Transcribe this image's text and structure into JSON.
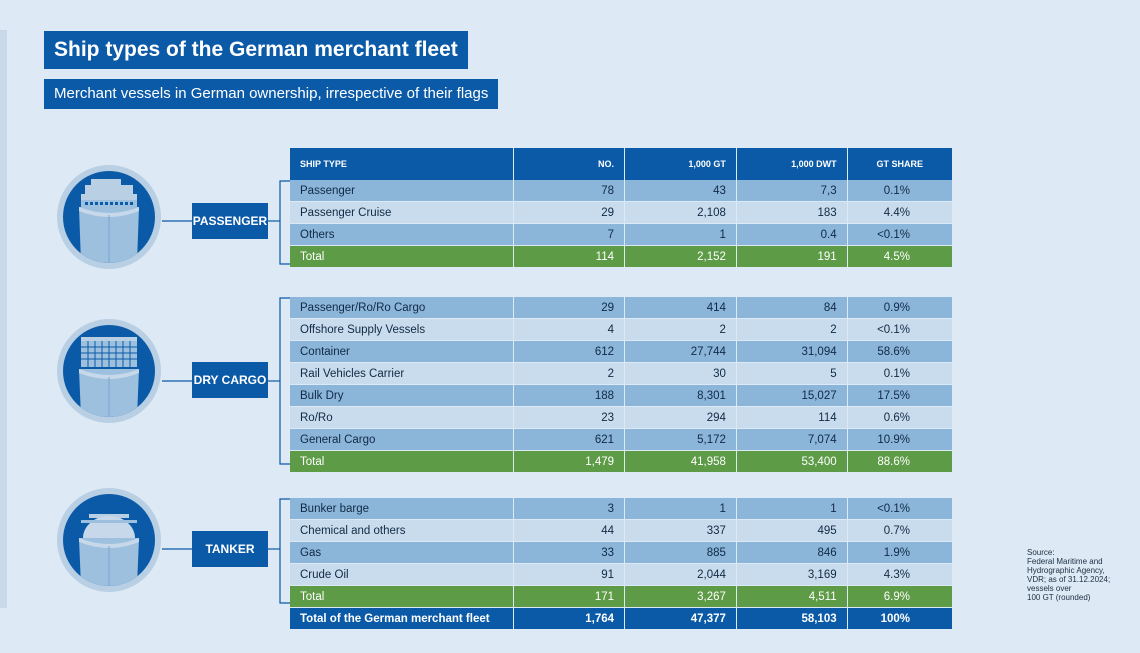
{
  "title": "Ship types of the German merchant fleet",
  "subtitle": "Merchant vessels in German ownership, irrespective of their flags",
  "categories": [
    {
      "label": "PASSENGER",
      "icon": "passenger-ship-icon"
    },
    {
      "label": "DRY CARGO",
      "icon": "container-ship-icon"
    },
    {
      "label": "TANKER",
      "icon": "tanker-ship-icon"
    }
  ],
  "colors": {
    "blue": "#0b5aa7",
    "light_blue": "#8cb5da",
    "pale_blue": "#c9dced",
    "green": "#5d9b47",
    "background": "#dde9f4"
  },
  "source": "Source:\nFederal Maritime and Hydrographic Agency,\nVDR; as of 31.12.2024;\nvessels over\n100 GT (rounded)",
  "chart_data": {
    "type": "table",
    "columns": [
      "SHIP TYPE",
      "NO.",
      "1,000 GT",
      "1,000 DWT",
      "GT SHARE"
    ],
    "groups": [
      {
        "category": "PASSENGER",
        "rows": [
          [
            "Passenger",
            "78",
            "43",
            "7,3",
            "0.1%"
          ],
          [
            "Passenger Cruise",
            "29",
            "2,108",
            "183",
            "4.4%"
          ],
          [
            "Others",
            "7",
            "1",
            "0.4",
            "<0.1%"
          ]
        ],
        "total": [
          "Total",
          "114",
          "2,152",
          "191",
          "4.5%"
        ]
      },
      {
        "category": "DRY CARGO",
        "rows": [
          [
            "Passenger/Ro/Ro Cargo",
            "29",
            "414",
            "84",
            "0.9%"
          ],
          [
            "Offshore Supply Vessels",
            "4",
            "2",
            "2",
            "<0.1%"
          ],
          [
            "Container",
            "612",
            "27,744",
            "31,094",
            "58.6%"
          ],
          [
            "Rail Vehicles Carrier",
            "2",
            "30",
            "5",
            "0.1%"
          ],
          [
            "Bulk Dry",
            "188",
            "8,301",
            "15,027",
            "17.5%"
          ],
          [
            "Ro/Ro",
            "23",
            "294",
            "114",
            "0.6%"
          ],
          [
            "General Cargo",
            "621",
            "5,172",
            "7,074",
            "10.9%"
          ]
        ],
        "total": [
          "Total",
          "1,479",
          "41,958",
          "53,400",
          "88.6%"
        ]
      },
      {
        "category": "TANKER",
        "rows": [
          [
            "Bunker barge",
            "3",
            "1",
            "1",
            "<0.1%"
          ],
          [
            "Chemical and others",
            "44",
            "337",
            "495",
            "0.7%"
          ],
          [
            "Gas",
            "33",
            "885",
            "846",
            "1.9%"
          ],
          [
            "Crude Oil",
            "91",
            "2,044",
            "3,169",
            "4.3%"
          ]
        ],
        "total": [
          "Total",
          "171",
          "3,267",
          "4,511",
          "6.9%"
        ]
      }
    ],
    "grand_total": [
      "Total of the German merchant fleet",
      "1,764",
      "47,377",
      "58,103",
      "100%"
    ]
  }
}
